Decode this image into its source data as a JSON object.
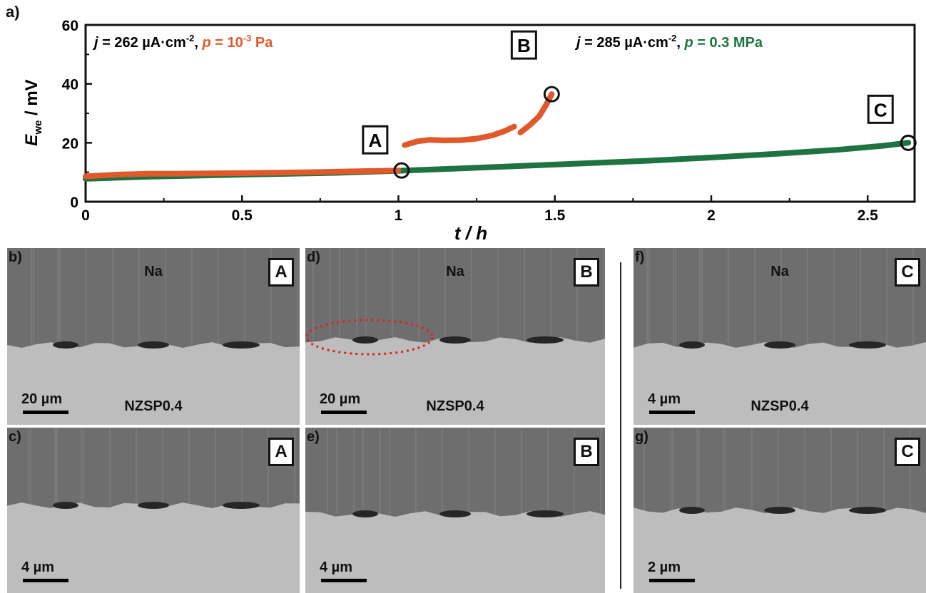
{
  "chart_data": {
    "panel_label": "a)",
    "type": "line",
    "x": {
      "label": "t / h",
      "lim": [
        0,
        2.65
      ],
      "ticks": [
        0,
        0.5,
        1,
        1.5,
        2,
        2.5
      ],
      "tick_labels": [
        "0",
        "0.5",
        "1",
        "1.5",
        "2",
        "2.5"
      ]
    },
    "y": {
      "label_main": "E",
      "label_sub": "we",
      "label_unit": " / mV",
      "lim": [
        0,
        60
      ],
      "ticks": [
        0,
        20,
        40,
        60
      ],
      "tick_labels": [
        "0",
        "20",
        "40",
        "60"
      ]
    },
    "series": [
      {
        "color": "#1e7340",
        "x": [
          0,
          0.2,
          0.5,
          0.8,
          1.0,
          1.2,
          1.5,
          1.8,
          2.0,
          2.2,
          2.4,
          2.55,
          2.63
        ],
        "y": [
          7.8,
          8.5,
          9.2,
          9.8,
          10.5,
          11.3,
          12.6,
          13.9,
          15.0,
          16.2,
          17.6,
          19.0,
          20.0
        ]
      },
      {
        "color": "#e0592a",
        "x": [
          0,
          0.1,
          0.2,
          0.3,
          0.5,
          0.7,
          0.9,
          1.0
        ],
        "y": [
          8.6,
          9.2,
          9.5,
          9.5,
          9.7,
          10.0,
          10.4,
          10.6
        ]
      },
      {
        "color": "#e0592a",
        "x": [
          1.02,
          1.06,
          1.1,
          1.15,
          1.2,
          1.25,
          1.3,
          1.34,
          1.37
        ],
        "y": [
          19.2,
          20.5,
          21.0,
          20.8,
          20.9,
          21.4,
          22.5,
          24.0,
          25.5
        ]
      },
      {
        "color": "#e0592a",
        "x": [
          1.39,
          1.42,
          1.45,
          1.47,
          1.49
        ],
        "y": [
          23.5,
          26.0,
          29.0,
          32.5,
          36.5
        ]
      }
    ],
    "conditions": [
      {
        "j_symbol": "j",
        "j_text": " = 262 µA·cm",
        "j_exp": "-2",
        "sep": ", ",
        "p_symbol": "p",
        "p_text": " = 10",
        "p_exp": "-3",
        "p_unit": " Pa",
        "p_color": "#e0592a"
      },
      {
        "j_symbol": "j",
        "j_text": " = 285 µA·cm",
        "j_exp": "-2",
        "sep": ", ",
        "p_symbol": "p",
        "p_text": " = 0.3 MPa",
        "p_exp": "",
        "p_unit": "",
        "p_color": "#1e7340"
      }
    ],
    "markers": [
      {
        "label": "A",
        "x": 1.01,
        "y": 10.6
      },
      {
        "label": "B",
        "x": 1.49,
        "y": 36.5
      },
      {
        "label": "C",
        "x": 2.63,
        "y": 20.0
      }
    ]
  },
  "sem_panels": [
    {
      "label": "b)",
      "tag": "A",
      "top": "Na",
      "bottom": "NZSP0.4",
      "scale": "20 µm"
    },
    {
      "label": "d)",
      "tag": "B",
      "top": "Na",
      "bottom": "NZSP0.4",
      "scale": "20 µm"
    },
    {
      "label": "f)",
      "tag": "C",
      "top": "Na",
      "bottom": "NZSP0.4",
      "scale": "4 µm"
    },
    {
      "label": "c)",
      "tag": "A",
      "top": "",
      "bottom": "",
      "scale": "4 µm"
    },
    {
      "label": "e)",
      "tag": "B",
      "top": "",
      "bottom": "",
      "scale": "4 µm"
    },
    {
      "label": "g)",
      "tag": "C",
      "top": "",
      "bottom": "",
      "scale": "2 µm"
    }
  ],
  "colors": {
    "sem_top": "#6e6e6e",
    "sem_bottom": "#bdbdbd",
    "highlight_ellipse": "#e02020"
  }
}
